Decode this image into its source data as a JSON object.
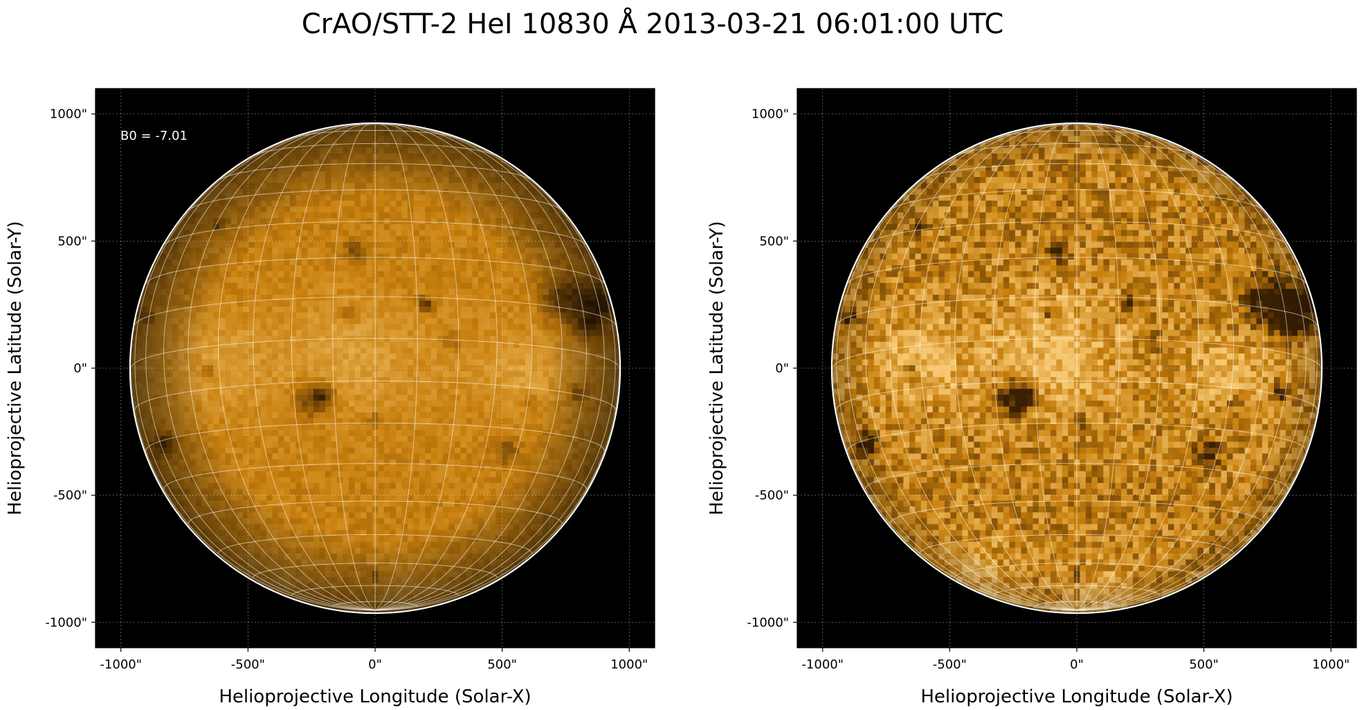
{
  "title": "CrAO/STT-2 HeI 10830 Å 2013-03-21 06:01:00 UTC",
  "colors": {
    "background": "#000000",
    "disk_bright": "#f6c873",
    "disk_mid": "#c8800e",
    "disk_dark": "#3a1f02",
    "limb": "#ffffff",
    "grid": "#ffffff"
  },
  "chart_data": [
    {
      "type": "heatmap",
      "panel": "left",
      "xlabel": "Helioprojective Longitude (Solar-X)",
      "ylabel": "Helioprojective Latitude (Solar-Y)",
      "xlim": [
        -1100,
        1100
      ],
      "ylim": [
        -1100,
        1100
      ],
      "xticks": [
        -1000,
        -500,
        0,
        500,
        1000
      ],
      "yticks": [
        -1000,
        -500,
        0,
        500,
        1000
      ],
      "xtick_labels": [
        "-1000\"",
        "-500\"",
        "0\"",
        "500\"",
        "1000\""
      ],
      "ytick_labels": [
        "-1000\"",
        "-500\"",
        "0\"",
        "500\"",
        "1000\""
      ],
      "annotation": "B0 = -7.01",
      "b0_deg": -7.01,
      "solar_radius_arcsec": 960,
      "grid": true,
      "contrast": "normal"
    },
    {
      "type": "heatmap",
      "panel": "right",
      "xlabel": "Helioprojective Longitude (Solar-X)",
      "ylabel": "Helioprojective Latitude (Solar-Y)",
      "xlim": [
        -1100,
        1100
      ],
      "ylim": [
        -1100,
        1100
      ],
      "xticks": [
        -1000,
        -500,
        0,
        500,
        1000
      ],
      "yticks": [
        -1000,
        -500,
        0,
        500,
        1000
      ],
      "xtick_labels": [
        "-1000\"",
        "-500\"",
        "0\"",
        "500\"",
        "1000\""
      ],
      "ytick_labels": [
        "-1000\"",
        "-500\"",
        "0\"",
        "500\"",
        "1000\""
      ],
      "b0_deg": -7.01,
      "solar_radius_arcsec": 960,
      "grid": true,
      "contrast": "enhanced"
    }
  ],
  "dark_features": [
    {
      "x": 750,
      "y": 270,
      "r": 90,
      "strength": 0.8
    },
    {
      "x": 880,
      "y": 250,
      "r": 70,
      "strength": 0.9
    },
    {
      "x": 840,
      "y": 160,
      "r": 60,
      "strength": 0.7
    },
    {
      "x": -250,
      "y": -120,
      "r": 70,
      "strength": 0.75
    },
    {
      "x": -200,
      "y": -110,
      "r": 40,
      "strength": 0.6
    },
    {
      "x": 200,
      "y": 250,
      "r": 30,
      "strength": 0.85
    },
    {
      "x": -830,
      "y": -300,
      "r": 45,
      "strength": 0.75
    },
    {
      "x": -620,
      "y": 560,
      "r": 25,
      "strength": 0.7
    },
    {
      "x": -80,
      "y": 460,
      "r": 45,
      "strength": 0.5
    },
    {
      "x": -100,
      "y": 210,
      "r": 30,
      "strength": 0.5
    },
    {
      "x": -650,
      "y": -10,
      "r": 35,
      "strength": 0.45
    },
    {
      "x": 520,
      "y": -330,
      "r": 50,
      "strength": 0.55
    },
    {
      "x": 620,
      "y": -140,
      "r": 30,
      "strength": 0.4
    },
    {
      "x": 0,
      "y": -210,
      "r": 30,
      "strength": 0.5
    },
    {
      "x": 0,
      "y": -820,
      "r": 25,
      "strength": 0.6
    },
    {
      "x": 800,
      "y": -100,
      "r": 40,
      "strength": 0.5
    },
    {
      "x": -900,
      "y": 200,
      "r": 35,
      "strength": 0.5
    },
    {
      "x": 300,
      "y": 100,
      "r": 40,
      "strength": 0.35
    }
  ],
  "bright_features": [
    {
      "x": -100,
      "y": 80,
      "r": 220,
      "strength": 0.35
    },
    {
      "x": -600,
      "y": 30,
      "r": 160,
      "strength": 0.3
    },
    {
      "x": -400,
      "y": -850,
      "r": 150,
      "strength": 0.35
    },
    {
      "x": 580,
      "y": -30,
      "r": 120,
      "strength": 0.3
    },
    {
      "x": 100,
      "y": -900,
      "r": 140,
      "strength": 0.3
    }
  ]
}
